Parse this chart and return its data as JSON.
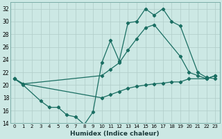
{
  "xlabel": "Humidex (Indice chaleur)",
  "x_ticks": [
    0,
    1,
    2,
    3,
    4,
    5,
    6,
    7,
    8,
    9,
    10,
    11,
    12,
    13,
    14,
    15,
    16,
    17,
    18,
    19,
    20,
    21,
    22,
    23
  ],
  "ylim": [
    14,
    33
  ],
  "xlim": [
    -0.5,
    23.5
  ],
  "y_ticks": [
    14,
    16,
    18,
    20,
    22,
    24,
    26,
    28,
    30,
    32
  ],
  "bg_color": "#cce8e4",
  "grid_color": "#b0ccc8",
  "line_color": "#1a6e62",
  "line1_x": [
    0,
    1,
    3,
    4,
    5,
    6,
    7,
    8,
    9,
    10,
    11,
    12,
    13,
    14,
    15,
    16,
    17,
    18,
    19,
    21,
    22,
    23
  ],
  "line1_y": [
    21,
    20,
    17.5,
    16.5,
    16.5,
    15.3,
    15.0,
    13.8,
    15.8,
    23.5,
    27.0,
    23.8,
    29.8,
    30,
    32,
    31,
    32,
    30,
    29.3,
    22,
    21.2,
    21.0
  ],
  "line2_x": [
    0,
    1,
    10,
    11,
    12,
    13,
    14,
    15,
    16,
    19,
    20,
    21,
    22,
    23
  ],
  "line2_y": [
    21,
    20.2,
    21.5,
    22.5,
    23.5,
    25.5,
    27.3,
    29,
    29.5,
    24.5,
    22,
    21.5,
    21.0,
    21.5
  ],
  "line3_x": [
    0,
    1,
    10,
    11,
    12,
    13,
    14,
    15,
    16,
    17,
    18,
    19,
    20,
    22,
    23
  ],
  "line3_y": [
    21,
    20.2,
    18.0,
    18.5,
    19.0,
    19.5,
    19.8,
    20.0,
    20.2,
    20.3,
    20.5,
    20.5,
    21.0,
    21.0,
    21.5
  ]
}
